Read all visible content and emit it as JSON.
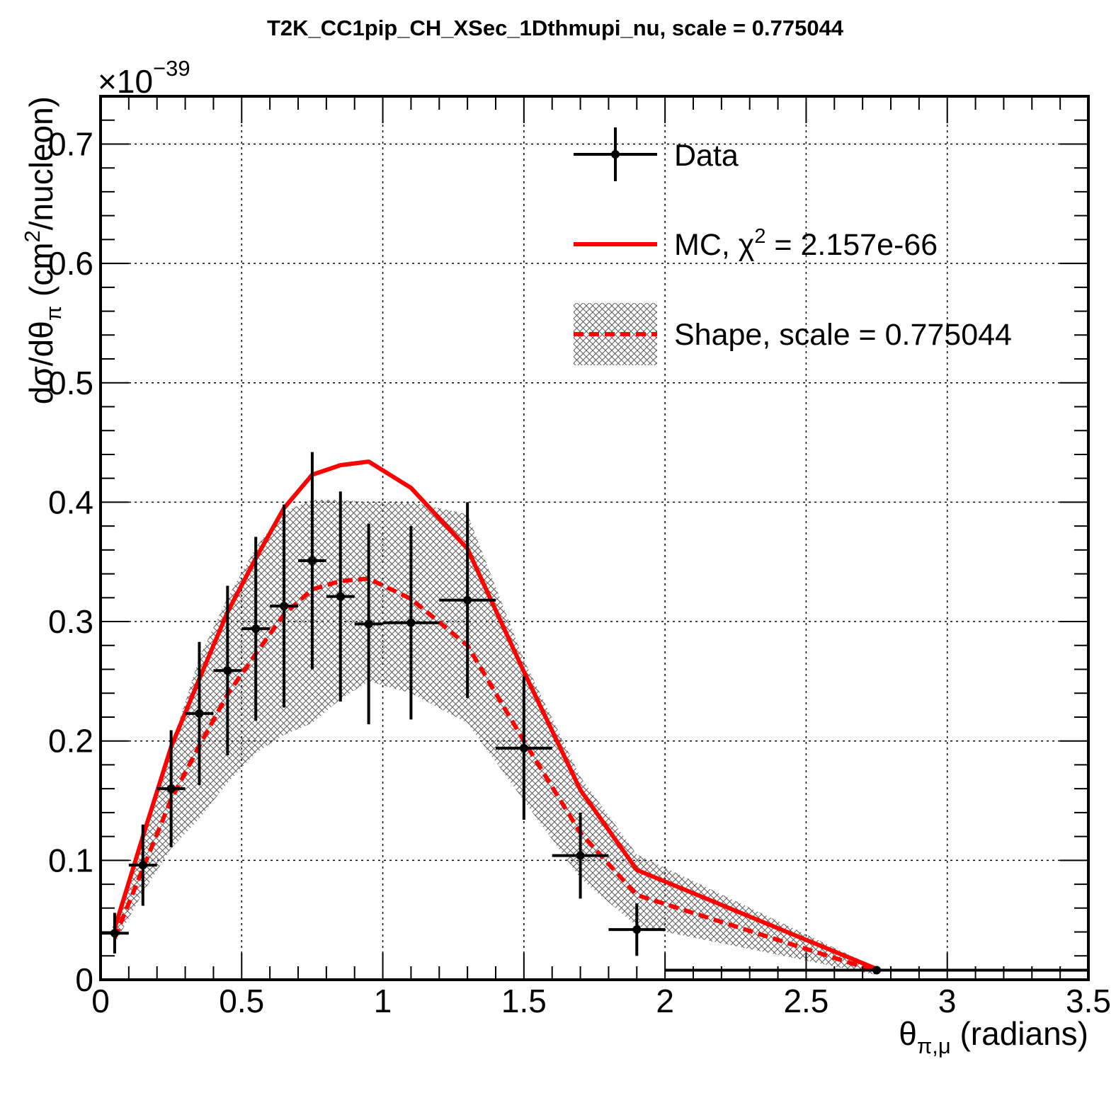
{
  "chart_data": {
    "type": "line",
    "title": "T2K_CC1pip_CH_XSec_1Dthmupi_nu, scale = 0.775044",
    "xlabel": {
      "main": "θ",
      "sub": "π,μ",
      "rest": " (radians)"
    },
    "ylabel": {
      "pre": "dσ/dθ",
      "sub": "π",
      "mid": " (cm",
      "sup": "2",
      "post": "/nucleon)"
    },
    "y_multiplier": {
      "base": "×10",
      "exponent": "−39"
    },
    "xlim": [
      0,
      3.5
    ],
    "ylim": [
      0,
      0.74
    ],
    "x_ticks": [
      0,
      0.5,
      1,
      1.5,
      2,
      2.5,
      3,
      3.5
    ],
    "x_tick_labels": [
      "0",
      "0.5",
      "1",
      "1.5",
      "2",
      "2.5",
      "3",
      "3.5"
    ],
    "y_ticks": [
      0,
      0.1,
      0.2,
      0.3,
      0.4,
      0.5,
      0.6,
      0.7
    ],
    "y_tick_labels": [
      "0",
      "0.1",
      "0.2",
      "0.3",
      "0.4",
      "0.5",
      "0.6",
      "0.7"
    ],
    "grid": true,
    "legend_position": "top-right",
    "legend": {
      "data": "Data",
      "mc": {
        "pre": "MC, χ",
        "sup": "2",
        "post": " = 2.157e-66"
      },
      "shape": "Shape, scale = 0.775044"
    },
    "colors": {
      "data": "#000000",
      "mc": "#ff0000",
      "shape": "#ff0000",
      "band": "#555555"
    },
    "series": [
      {
        "name": "Data",
        "kind": "points_with_errors",
        "x": [
          0.05,
          0.15,
          0.25,
          0.35,
          0.45,
          0.55,
          0.65,
          0.75,
          0.85,
          0.95,
          1.1,
          1.3,
          1.5,
          1.7,
          1.9,
          2.75
        ],
        "xlow": [
          0.0,
          0.1,
          0.2,
          0.3,
          0.4,
          0.5,
          0.6,
          0.7,
          0.8,
          0.9,
          1.0,
          1.2,
          1.4,
          1.6,
          1.8,
          2.0
        ],
        "xhigh": [
          0.1,
          0.2,
          0.3,
          0.4,
          0.5,
          0.6,
          0.7,
          0.8,
          0.9,
          1.0,
          1.2,
          1.4,
          1.6,
          1.8,
          2.0,
          3.5
        ],
        "y": [
          0.039,
          0.096,
          0.16,
          0.223,
          0.259,
          0.294,
          0.313,
          0.351,
          0.321,
          0.298,
          0.299,
          0.318,
          0.194,
          0.104,
          0.042,
          0.008
        ],
        "yerr": [
          0.017,
          0.034,
          0.049,
          0.06,
          0.071,
          0.077,
          0.085,
          0.091,
          0.088,
          0.084,
          0.081,
          0.082,
          0.06,
          0.036,
          0.022,
          0.001
        ]
      },
      {
        "name": "MC",
        "kind": "line",
        "x": [
          0.05,
          0.15,
          0.25,
          0.35,
          0.45,
          0.55,
          0.65,
          0.75,
          0.85,
          0.95,
          1.1,
          1.3,
          1.5,
          1.7,
          1.9,
          2.75
        ],
        "y": [
          0.043,
          0.12,
          0.195,
          0.252,
          0.308,
          0.353,
          0.395,
          0.423,
          0.431,
          0.434,
          0.412,
          0.361,
          0.258,
          0.159,
          0.092,
          0.009
        ]
      },
      {
        "name": "Shape",
        "kind": "dashed_line_with_band",
        "x": [
          0.05,
          0.15,
          0.25,
          0.35,
          0.45,
          0.55,
          0.65,
          0.75,
          0.85,
          0.95,
          1.1,
          1.3,
          1.5,
          1.7,
          1.9,
          2.75
        ],
        "y": [
          0.035,
          0.093,
          0.151,
          0.196,
          0.239,
          0.273,
          0.306,
          0.327,
          0.334,
          0.336,
          0.319,
          0.28,
          0.2,
          0.123,
          0.071,
          0.007
        ],
        "band_low": [
          0.03,
          0.073,
          0.11,
          0.135,
          0.165,
          0.19,
          0.205,
          0.215,
          0.235,
          0.25,
          0.24,
          0.215,
          0.15,
          0.085,
          0.045,
          0.004
        ],
        "band_high": [
          0.042,
          0.12,
          0.195,
          0.27,
          0.32,
          0.362,
          0.392,
          0.402,
          0.402,
          0.4,
          0.4,
          0.39,
          0.268,
          0.17,
          0.105,
          0.01
        ]
      }
    ]
  }
}
